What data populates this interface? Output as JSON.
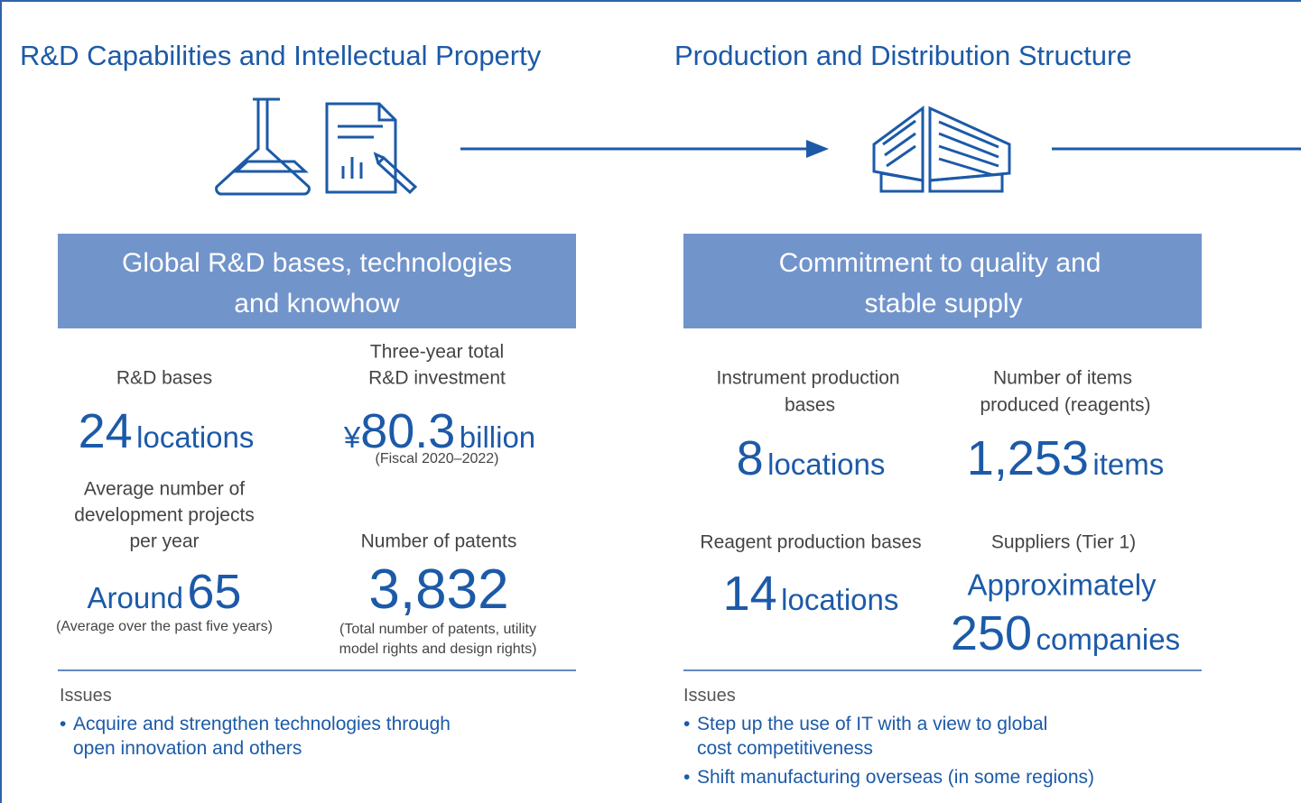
{
  "columns": [
    {
      "title": "R&D Capabilities and Intellectual Property",
      "box": [
        "Global R&D bases, technologies",
        "and knowhow"
      ],
      "stats": [
        {
          "label": [
            "R&D bases"
          ],
          "number": "24",
          "unit": "locations"
        },
        {
          "label": [
            "Three-year total",
            "R&D investment"
          ],
          "prefix": "¥",
          "number": "80.3",
          "unit": "billion",
          "note": [
            "(Fiscal 2020–2022)"
          ]
        },
        {
          "label": [
            "Average number of",
            "development projects",
            "per year"
          ],
          "prefix": "Around",
          "number": "65",
          "note": [
            "(Average over the past five years)"
          ]
        },
        {
          "label": [
            "Number of patents"
          ],
          "number": "3,832",
          "note": [
            "(Total number of patents, utility",
            "model rights and design rights)"
          ]
        }
      ],
      "issues_label": "Issues",
      "issues": [
        [
          "Acquire and strengthen technologies through",
          "open innovation and others"
        ]
      ]
    },
    {
      "title": "Production and Distribution Structure",
      "box": [
        "Commitment to quality and",
        "stable supply"
      ],
      "stats": [
        {
          "label": [
            "Instrument production",
            "bases"
          ],
          "number": "8",
          "unit": "locations"
        },
        {
          "label": [
            "Number of items",
            "produced (reagents)"
          ],
          "number": "1,253",
          "unit": "items"
        },
        {
          "label": [
            "Reagent production bases"
          ],
          "number": "14",
          "unit": "locations"
        },
        {
          "label": [
            "Suppliers (Tier 1)"
          ],
          "prefix": "Approximately",
          "number": "250",
          "unit": "companies"
        }
      ],
      "issues_label": "Issues",
      "issues": [
        [
          "Step up the use of IT with a view to global",
          "cost competitiveness"
        ],
        [
          "Shift manufacturing overseas (in some regions)"
        ]
      ]
    }
  ]
}
